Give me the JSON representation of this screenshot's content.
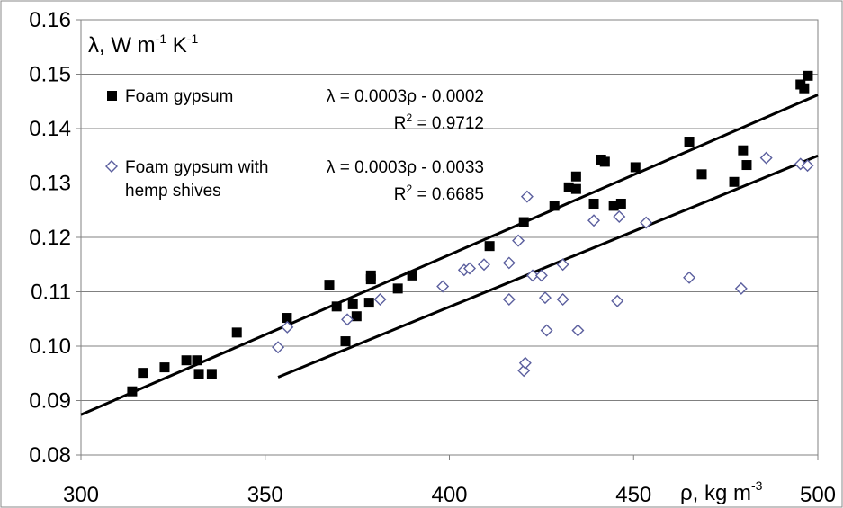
{
  "chart_data": {
    "type": "scatter",
    "xlabel": {
      "base": "ρ, kg m",
      "sup": "-3"
    },
    "ylabel": {
      "base": "λ, W m",
      "sup1": "-1",
      "mid": " K",
      "sup2": "-1"
    },
    "xlim": [
      300,
      500
    ],
    "ylim": [
      0.08,
      0.16
    ],
    "x_ticks": [
      {
        "v": 300,
        "label": "300"
      },
      {
        "v": 350,
        "label": "350"
      },
      {
        "v": 400,
        "label": "400"
      },
      {
        "v": 450,
        "label": "450"
      },
      {
        "v": 500,
        "label": "500"
      }
    ],
    "y_ticks": [
      {
        "v": 0.08,
        "label": "0.08"
      },
      {
        "v": 0.09,
        "label": "0.09"
      },
      {
        "v": 0.1,
        "label": "0.10"
      },
      {
        "v": 0.11,
        "label": "0.11"
      },
      {
        "v": 0.12,
        "label": "0.12"
      },
      {
        "v": 0.13,
        "label": "0.13"
      },
      {
        "v": 0.14,
        "label": "0.14"
      },
      {
        "v": 0.15,
        "label": "0.15"
      },
      {
        "v": 0.16,
        "label": "0.16"
      }
    ],
    "grid": "horizontal",
    "legend_placement": "top-left",
    "series": [
      {
        "name": "Foam gypsum",
        "marker": "filled-square",
        "color": "#000000",
        "points": [
          [
            313.9,
            0.0917
          ],
          [
            316.8,
            0.0951
          ],
          [
            322.7,
            0.0961
          ],
          [
            328.6,
            0.0974
          ],
          [
            331.5,
            0.0974
          ],
          [
            332.0,
            0.0949
          ],
          [
            335.5,
            0.0949
          ],
          [
            342.3,
            0.1025
          ],
          [
            355.9,
            0.1052
          ],
          [
            367.4,
            0.1113
          ],
          [
            369.4,
            0.1073
          ],
          [
            371.8,
            0.1009
          ],
          [
            373.8,
            0.1077
          ],
          [
            374.8,
            0.1055
          ],
          [
            378.2,
            0.108
          ],
          [
            378.7,
            0.1123
          ],
          [
            378.7,
            0.113
          ],
          [
            386.0,
            0.1106
          ],
          [
            389.9,
            0.113
          ],
          [
            410.9,
            0.1184
          ],
          [
            420.2,
            0.1228
          ],
          [
            428.5,
            0.1258
          ],
          [
            432.4,
            0.1292
          ],
          [
            434.4,
            0.1312
          ],
          [
            434.4,
            0.1289
          ],
          [
            439.2,
            0.1262
          ],
          [
            441.2,
            0.1343
          ],
          [
            442.2,
            0.1339
          ],
          [
            444.6,
            0.1258
          ],
          [
            446.6,
            0.1262
          ],
          [
            450.5,
            0.1329
          ],
          [
            465.1,
            0.1376
          ],
          [
            468.5,
            0.1316
          ],
          [
            477.3,
            0.1302
          ],
          [
            479.7,
            0.136
          ],
          [
            480.7,
            0.1333
          ],
          [
            495.3,
            0.1481
          ],
          [
            496.3,
            0.1474
          ],
          [
            497.3,
            0.1497
          ]
        ]
      },
      {
        "name": "Foam gypsum with hemp shives",
        "marker": "open-diamond",
        "color": "#5b5f9e",
        "points": [
          [
            353.5,
            0.0998
          ],
          [
            356.0,
            0.1035
          ],
          [
            372.3,
            0.1049
          ],
          [
            381.2,
            0.1086
          ],
          [
            398.2,
            0.111
          ],
          [
            404.0,
            0.114
          ],
          [
            405.5,
            0.1143
          ],
          [
            409.4,
            0.115
          ],
          [
            416.2,
            0.1153
          ],
          [
            416.2,
            0.1086
          ],
          [
            418.7,
            0.1194
          ],
          [
            420.2,
            0.0955
          ],
          [
            420.6,
            0.0969
          ],
          [
            421.1,
            0.1275
          ],
          [
            422.6,
            0.113
          ],
          [
            425.0,
            0.113
          ],
          [
            426.0,
            0.1089
          ],
          [
            426.4,
            0.1029
          ],
          [
            430.8,
            0.115
          ],
          [
            430.8,
            0.1086
          ],
          [
            434.9,
            0.1029
          ],
          [
            439.2,
            0.1231
          ],
          [
            445.6,
            0.1083
          ],
          [
            446.1,
            0.1238
          ],
          [
            453.4,
            0.1227
          ],
          [
            465.1,
            0.1126
          ],
          [
            479.2,
            0.1106
          ],
          [
            486.0,
            0.1346
          ],
          [
            495.3,
            0.1335
          ],
          [
            497.2,
            0.1332
          ]
        ]
      }
    ],
    "trendlines": [
      {
        "series": "Foam gypsum",
        "x_range": [
          300,
          500
        ],
        "y_at_start": 0.0874,
        "y_at_end": 0.1462,
        "equation": "λ = 0.0003ρ - 0.0002",
        "r2_prefix": "R",
        "r2_sup": "2",
        "r2_value": " = 0.9712"
      },
      {
        "series": "Foam gypsum with hemp shives",
        "x_range": [
          353.5,
          500
        ],
        "y_at_start": 0.0943,
        "y_at_end": 0.135,
        "equation": "λ = 0.0003ρ - 0.0033",
        "r2_prefix": "R",
        "r2_sup": "2",
        "r2_value": " = 0.6685"
      }
    ],
    "legend": {
      "entry1": "Foam gypsum",
      "entry2_line1": "Foam gypsum with",
      "entry2_line2": "hemp shives"
    }
  }
}
